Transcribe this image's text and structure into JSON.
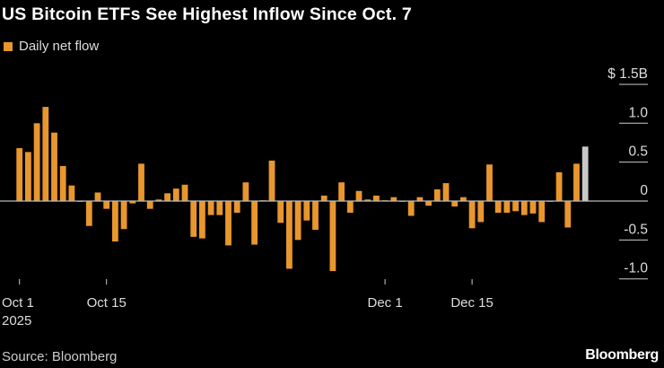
{
  "title": "US Bitcoin ETFs See Highest Inflow Since Oct. 7",
  "source": "Source: Bloomberg",
  "logo": "Bloomberg",
  "colors": {
    "bar": "#e8962e",
    "highlight": "#c8c8c8",
    "background": "#000000",
    "zero_line": "#bbbbbb"
  },
  "chart_data": {
    "type": "bar",
    "title": "US Bitcoin ETFs See Highest Inflow Since Oct. 7",
    "legend": [
      {
        "name": "Daily net flow",
        "color": "#e8962e"
      }
    ],
    "legend_position": "top-left",
    "ylabel": "",
    "yunit": "$B",
    "ylim": [
      -1.0,
      1.5
    ],
    "y_ticks": [
      {
        "value": 1.5,
        "label": "$ 1.5B"
      },
      {
        "value": 1.0,
        "label": "1.0"
      },
      {
        "value": 0.5,
        "label": "0.5"
      },
      {
        "value": 0,
        "label": "0"
      },
      {
        "value": -0.5,
        "label": "-0.5"
      },
      {
        "value": -1.0,
        "label": "-1.0"
      }
    ],
    "x_ticks": [
      {
        "label": "Oct 1",
        "sublabel": "2025"
      },
      {
        "label": "Oct 15",
        "sublabel": ""
      },
      {
        "label": "Dec 1",
        "sublabel": ""
      },
      {
        "label": "Dec 15",
        "sublabel": ""
      }
    ],
    "grid": false,
    "highlight_last": true,
    "values": [
      0.68,
      0.63,
      1.0,
      1.21,
      0.88,
      0.45,
      0.2,
      -0.01,
      -0.32,
      0.11,
      -0.1,
      -0.52,
      -0.36,
      -0.03,
      0.48,
      -0.1,
      0.02,
      0.1,
      0.16,
      0.21,
      -0.46,
      -0.48,
      -0.18,
      -0.18,
      -0.57,
      -0.15,
      0.24,
      -0.56,
      0.01,
      0.52,
      -0.28,
      -0.87,
      -0.5,
      -0.25,
      -0.37,
      0.07,
      -0.9,
      0.24,
      -0.15,
      0.13,
      0.02,
      0.07,
      0.01,
      0.05,
      -0.01,
      -0.19,
      0.05,
      -0.06,
      0.15,
      0.23,
      -0.07,
      0.05,
      -0.35,
      -0.27,
      0.47,
      -0.15,
      -0.15,
      -0.13,
      -0.18,
      -0.16,
      -0.27,
      -0.01,
      0.37,
      -0.34,
      0.48,
      0.7
    ]
  }
}
